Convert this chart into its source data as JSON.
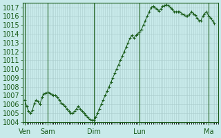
{
  "background_color": "#c8eaea",
  "plot_bg_color": "#c8eaea",
  "grid_color": "#aacccc",
  "line_color": "#1a5c1a",
  "marker_color": "#1a5c1a",
  "ylim": [
    1004,
    1017.5
  ],
  "yticks": [
    1004,
    1005,
    1006,
    1007,
    1008,
    1009,
    1010,
    1011,
    1012,
    1013,
    1014,
    1015,
    1016,
    1017
  ],
  "day_labels": [
    "Ven",
    "Sam",
    "Dim",
    "Lun",
    "Ma"
  ],
  "day_positions": [
    0,
    24,
    72,
    120,
    192
  ],
  "vline_positions": [
    0,
    24,
    72,
    120,
    192
  ],
  "x_values": [
    0,
    2,
    4,
    6,
    8,
    10,
    12,
    14,
    16,
    18,
    20,
    22,
    24,
    26,
    28,
    30,
    32,
    34,
    36,
    38,
    40,
    42,
    44,
    46,
    48,
    50,
    52,
    54,
    56,
    58,
    60,
    62,
    64,
    66,
    68,
    70,
    72,
    74,
    76,
    78,
    80,
    82,
    84,
    86,
    88,
    90,
    92,
    94,
    96,
    98,
    100,
    102,
    104,
    106,
    108,
    110,
    112,
    114,
    116,
    118,
    120,
    122,
    124,
    126,
    128,
    130,
    132,
    134,
    136,
    138,
    140,
    142,
    144,
    146,
    148,
    150,
    152,
    154,
    156,
    158,
    160,
    162,
    164,
    166,
    168,
    170,
    172,
    174,
    176,
    178,
    180,
    182,
    184,
    186,
    188,
    190,
    192,
    194,
    196,
    198
  ],
  "y_values": [
    1006.5,
    1005.8,
    1005.2,
    1005.0,
    1005.3,
    1006.1,
    1006.5,
    1006.3,
    1006.0,
    1006.8,
    1007.2,
    1007.3,
    1007.4,
    1007.3,
    1007.1,
    1007.0,
    1007.0,
    1006.8,
    1006.5,
    1006.2,
    1006.0,
    1005.8,
    1005.5,
    1005.2,
    1005.0,
    1005.0,
    1005.2,
    1005.5,
    1005.8,
    1005.5,
    1005.2,
    1005.0,
    1004.8,
    1004.5,
    1004.3,
    1004.2,
    1004.2,
    1004.5,
    1005.0,
    1005.5,
    1006.0,
    1006.5,
    1007.0,
    1007.5,
    1008.0,
    1008.5,
    1009.0,
    1009.5,
    1010.0,
    1010.5,
    1011.0,
    1011.5,
    1012.0,
    1012.5,
    1013.0,
    1013.5,
    1013.8,
    1013.5,
    1013.8,
    1014.0,
    1014.2,
    1014.5,
    1015.0,
    1015.5,
    1016.0,
    1016.5,
    1017.0,
    1017.1,
    1017.0,
    1016.8,
    1016.6,
    1016.8,
    1017.1,
    1017.2,
    1017.3,
    1017.2,
    1017.0,
    1016.8,
    1016.5,
    1016.5,
    1016.5,
    1016.5,
    1016.3,
    1016.2,
    1016.0,
    1016.0,
    1016.2,
    1016.5,
    1016.3,
    1016.1,
    1015.8,
    1015.5,
    1015.5,
    1016.0,
    1016.3,
    1016.5,
    1016.0,
    1015.8,
    1015.5,
    1015.2
  ],
  "tick_label_fontsize": 7,
  "axis_label_fontsize": 7,
  "label_color": "#1a5c1a"
}
